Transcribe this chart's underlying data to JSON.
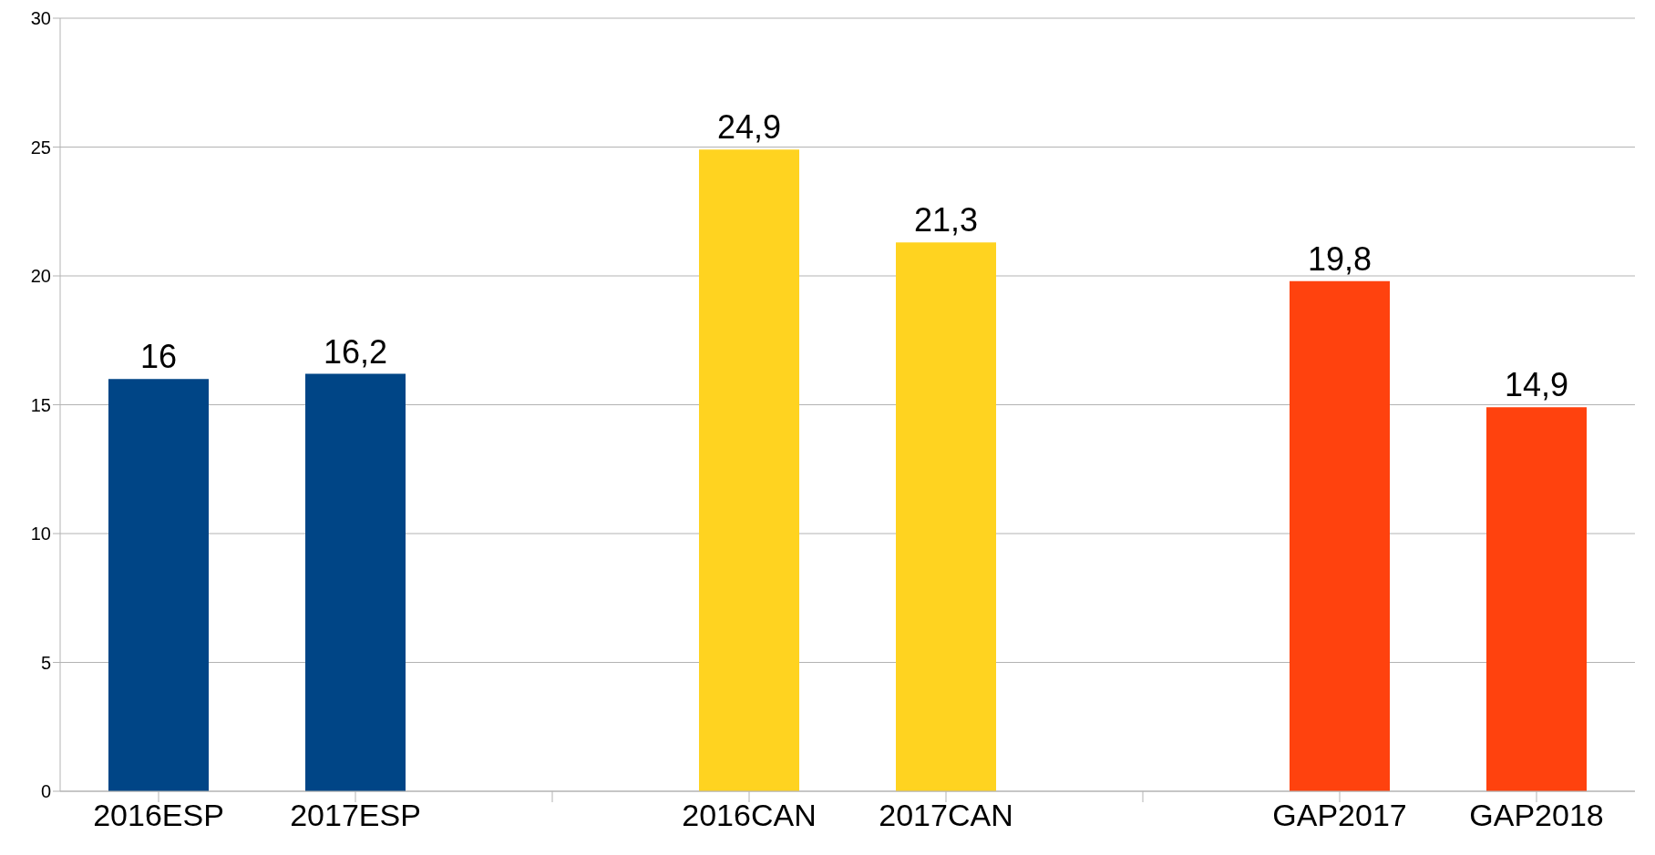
{
  "chart_data": {
    "type": "bar",
    "categories": [
      "2016ESP",
      "2017ESP",
      null,
      "2016CAN",
      "2017CAN",
      null,
      "GAP2017",
      "GAP2018"
    ],
    "values": [
      16,
      16.2,
      null,
      24.9,
      21.3,
      null,
      19.8,
      14.9
    ],
    "colors": [
      "#004586",
      "#004586",
      null,
      "#ffd320",
      "#ffd320",
      null,
      "#ff420e",
      "#ff420e"
    ],
    "value_labels": [
      "16",
      "16,2",
      null,
      "24,9",
      "21,3",
      null,
      "19,8",
      "14,9"
    ],
    "ylim": [
      0,
      30
    ],
    "yticks": [
      0,
      5,
      10,
      15,
      20,
      25,
      30
    ],
    "grid": "y",
    "legend": false
  }
}
